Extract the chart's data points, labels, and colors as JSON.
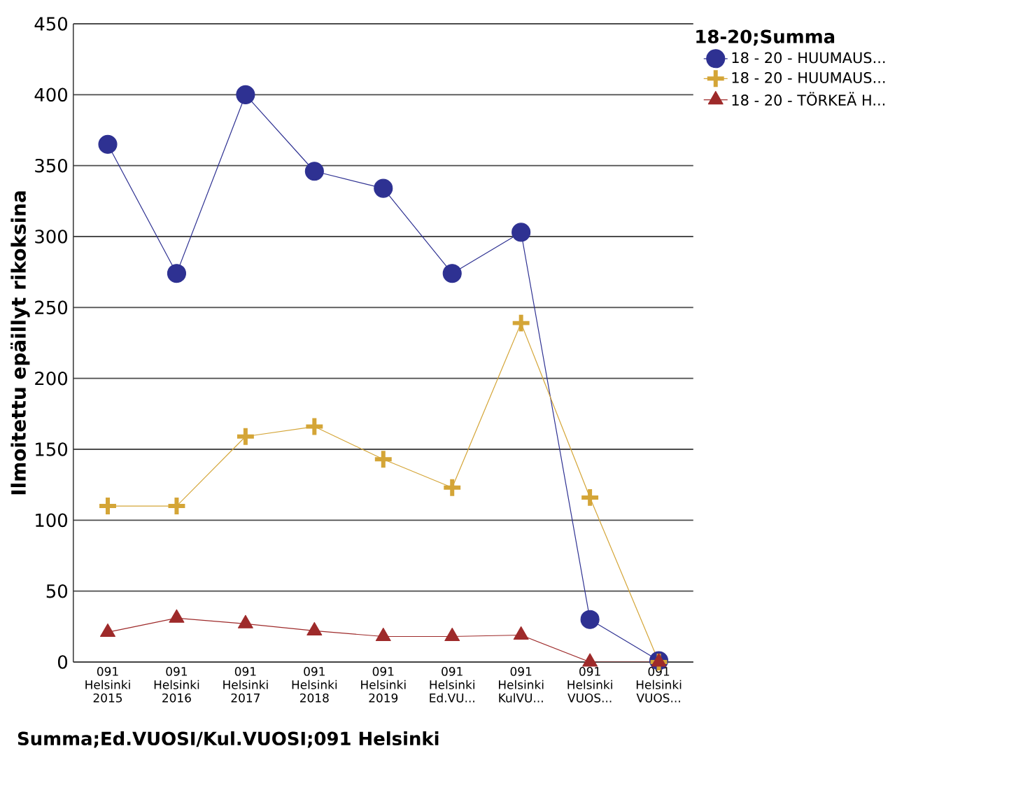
{
  "chart_data": {
    "type": "line",
    "xlabel": "Summa;Ed.VUOSI/Kul.VUOSI;091 Helsinki",
    "ylabel": "Ilmoitettu epäillyt rikoksina",
    "legend_title": "18-20;Summa",
    "categories": [
      "091 Helsinki 2015",
      "091 Helsinki 2016",
      "091 Helsinki 2017",
      "091 Helsinki 2018",
      "091 Helsinki 2019",
      "091 Helsinki Ed.VU...",
      "091 Helsinki KulVU...",
      "091 Helsinki VUOS...",
      "091 Helsinki VUOS..."
    ],
    "series": [
      {
        "name": "18 - 20 - HUUMAUS...",
        "color": "#2e3192",
        "marker": "circle",
        "values": [
          365,
          274,
          400,
          346,
          334,
          274,
          303,
          30,
          1
        ]
      },
      {
        "name": "18 - 20 - HUUMAUS...",
        "color": "#d4a537",
        "marker": "cross",
        "values": [
          110,
          110,
          159,
          166,
          143,
          123,
          239,
          116,
          0
        ]
      },
      {
        "name": "18 - 20 - TÖRKEÄ H...",
        "color": "#9e2a2a",
        "marker": "triangle",
        "values": [
          21,
          31,
          27,
          22,
          18,
          18,
          19,
          0,
          0
        ]
      }
    ],
    "ylim": [
      0,
      450
    ],
    "yticks": [
      0,
      50,
      100,
      150,
      200,
      250,
      300,
      350,
      400,
      450
    ],
    "grid": "y",
    "legend": "top right",
    "line_style": "solid"
  }
}
